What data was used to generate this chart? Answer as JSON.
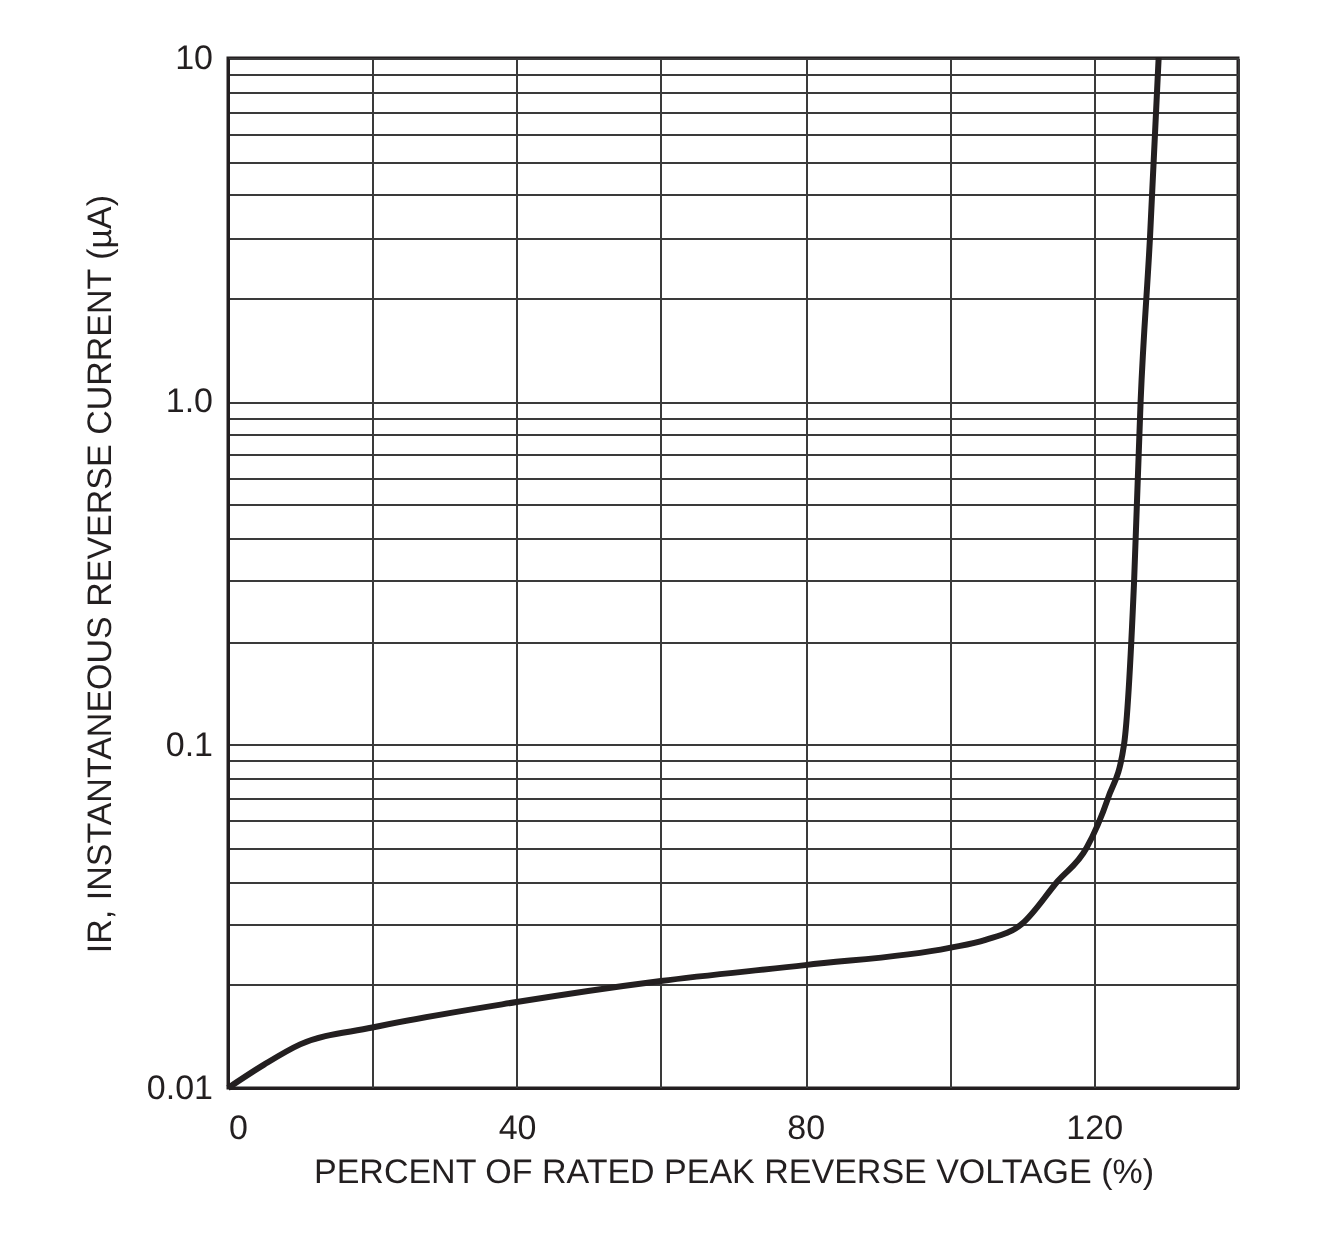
{
  "chart_data": {
    "type": "line",
    "xlabel": "PERCENT OF RATED PEAK REVERSE VOLTAGE (%)",
    "ylabel": "IR, INSTANTANEOUS REVERSE CURRENT (µA)",
    "x": [
      0,
      5,
      10,
      20,
      40,
      60,
      80,
      100,
      105,
      110,
      115,
      119,
      122,
      124.2,
      125.6,
      126.5,
      127.8,
      129
    ],
    "series": [
      {
        "color": "#231f20",
        "values": [
          0.01,
          0.0117,
          0.0134,
          0.015,
          0.0178,
          0.0205,
          0.0228,
          0.0256,
          0.027,
          0.03,
          0.04,
          0.05,
          0.07,
          0.1,
          0.3,
          1,
          3,
          10
        ]
      }
    ],
    "xlim": [
      0,
      140
    ],
    "xticks": [
      0,
      {
        "value": 20,
        "label": null
      },
      40,
      {
        "value": 60,
        "label": null
      },
      80,
      {
        "value": 100,
        "label": null
      },
      120,
      {
        "value": 140,
        "label": null
      }
    ],
    "ylim": [
      0.01,
      10
    ],
    "yticks": [
      0.01,
      {
        "value": 0.02,
        "label": null
      },
      {
        "value": 0.03,
        "label": null
      },
      {
        "value": 0.04,
        "label": null
      },
      {
        "value": 0.05,
        "label": null
      },
      {
        "value": 0.06,
        "label": null
      },
      {
        "value": 0.07,
        "label": null
      },
      {
        "value": 0.08,
        "label": null
      },
      {
        "value": 0.09,
        "label": null
      },
      0.1,
      {
        "value": 0.2,
        "label": null
      },
      {
        "value": 0.3,
        "label": null
      },
      {
        "value": 0.4,
        "label": null
      },
      {
        "value": 0.5,
        "label": null
      },
      {
        "value": 0.6,
        "label": null
      },
      {
        "value": 0.7,
        "label": null
      },
      {
        "value": 0.8,
        "label": null
      },
      {
        "value": 0.9,
        "label": null
      },
      {
        "value": 1,
        "label": "1.0"
      },
      {
        "value": 2,
        "label": null
      },
      {
        "value": 3,
        "label": null
      },
      {
        "value": 4,
        "label": null
      },
      {
        "value": 5,
        "label": null
      },
      {
        "value": 6,
        "label": null
      },
      {
        "value": 7,
        "label": null
      },
      {
        "value": 8,
        "label": null
      },
      {
        "value": 9,
        "label": null
      },
      10
    ],
    "log": "y",
    "grid": true,
    "line_style": "solid",
    "marker": "none"
  }
}
